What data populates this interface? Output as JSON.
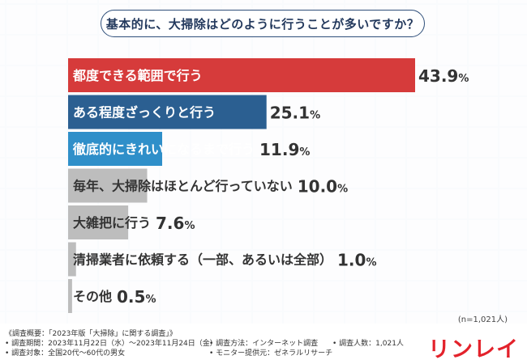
{
  "question": "基本的に、大掃除はどのように行うことが多いですか？",
  "chart_data": {
    "type": "bar",
    "orientation": "horizontal",
    "categories": [
      "都度できる範囲で行う",
      "ある程度ざっくりと行う",
      "徹底的にきれいになるまで行う",
      "毎年、大掃除はほとんど行っていない",
      "大雑把に行う",
      "清掃業者に依頼する（一部、あるいは全部）",
      "その他"
    ],
    "values": [
      43.9,
      25.1,
      11.9,
      10.0,
      7.6,
      1.0,
      0.5
    ],
    "value_labels": [
      "43.9%",
      "25.1%",
      "11.9%",
      "10.0%",
      "7.6%",
      "1.0%",
      "0.5%"
    ],
    "bar_colors": [
      "#d63b3b",
      "#2b5f91",
      "#2f8fc9",
      "#bdbdbd",
      "#bdbdbd",
      "#bdbdbd",
      "#bdbdbd"
    ],
    "label_colors": [
      "#ffffff",
      "#ffffff",
      "#ffffff",
      "#333333",
      "#333333",
      "#333333",
      "#333333"
    ],
    "xlim": [
      0,
      43.9
    ],
    "grid": false,
    "legend": "none"
  },
  "n_note": "(n=1,021人)",
  "footer": {
    "title": "《調査概要：「2023年版「大掃除」に関する調査」》",
    "period": "• 調査期間：2023年11月22日（水）〜2023年11月24日（金）",
    "target": "• 調査対象：全国20代〜60代の男女",
    "method": "• 調査方法：インターネット調査",
    "provider": "• モニター提供元：ゼネラルリサーチ",
    "count": "• 調査人数：1,021人"
  },
  "logo": "リンレイ"
}
